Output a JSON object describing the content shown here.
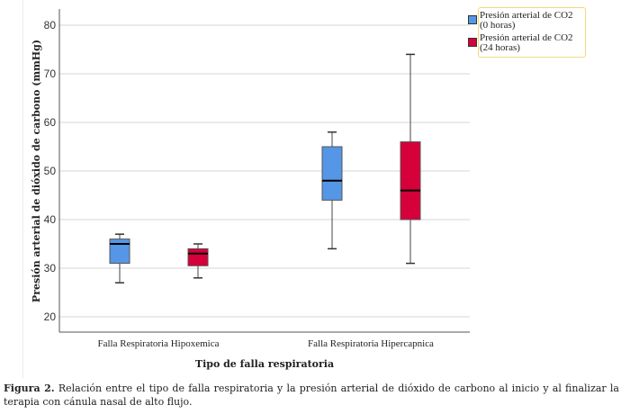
{
  "chart_data": {
    "type": "boxplot",
    "xlabel": "Tipo de falla respiratoria",
    "ylabel": "Presión arterial de dióxido de carbono (mmHg)",
    "ylim": [
      17,
      83
    ],
    "yticks": [
      20,
      30,
      40,
      50,
      60,
      70,
      80
    ],
    "grid": true,
    "legend_position": "top-right",
    "categories": [
      "Falla Respiratoria Hipoxemica",
      "Falla Respiratoria Hipercapnica"
    ],
    "series": [
      {
        "name": "Presión arterial de CO2 (0 horas)",
        "name_line1": "Presión arterial de CO2",
        "name_line2": "(0 horas)",
        "color": "#5596e6",
        "boxes": [
          {
            "min": 27,
            "q1": 31,
            "median": 35,
            "q3": 36,
            "max": 37
          },
          {
            "min": 34,
            "q1": 44,
            "median": 48,
            "q3": 55,
            "max": 58
          }
        ]
      },
      {
        "name": "Presión arterial de CO2 (24 horas)",
        "name_line1": "Presión arterial de CO2",
        "name_line2": "(24 horas)",
        "color": "#d6003a",
        "boxes": [
          {
            "min": 28,
            "q1": 30.5,
            "median": 33,
            "q3": 34,
            "max": 35
          },
          {
            "min": 31,
            "q1": 40,
            "median": 46,
            "q3": 56,
            "max": 74
          }
        ]
      }
    ]
  },
  "caption": {
    "label": "Figura 2.",
    "text": " Relación entre el tipo de falla respiratoria y la presión arterial de dióxido de carbono al inicio y al finalizar la terapia  con cánula nasal de alto flujo."
  }
}
